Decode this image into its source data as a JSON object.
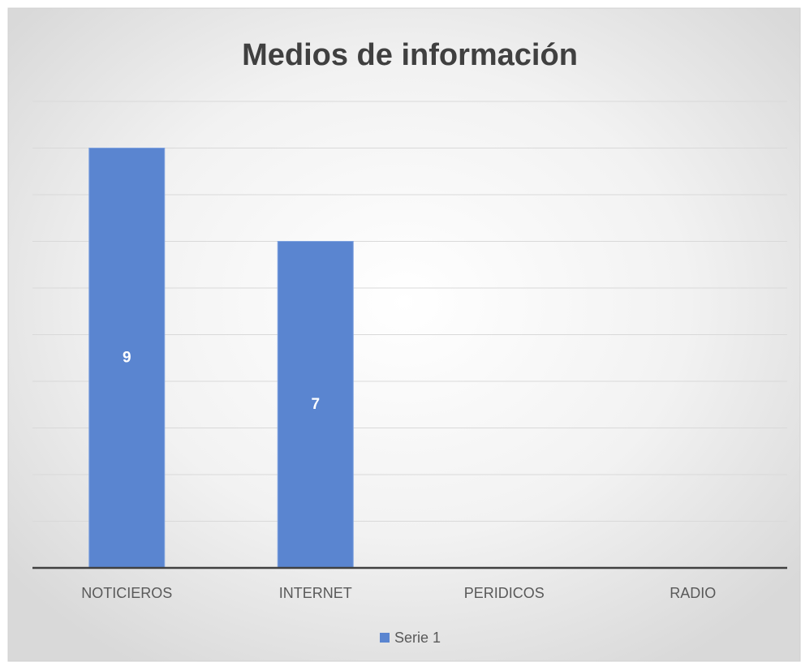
{
  "chart_data": {
    "type": "bar",
    "title": "Medios de información",
    "categories": [
      "NOTICIEROS",
      "INTERNET",
      "PERIDICOS",
      "RADIO"
    ],
    "series": [
      {
        "name": "Serie 1",
        "color": "#5a85d0",
        "values": [
          9,
          7,
          0,
          0
        ]
      }
    ],
    "ylim": [
      0,
      10
    ],
    "yticks": [
      0,
      1,
      2,
      3,
      4,
      5,
      6,
      7,
      8,
      9,
      10
    ],
    "grid": true,
    "legend": "bottom"
  }
}
